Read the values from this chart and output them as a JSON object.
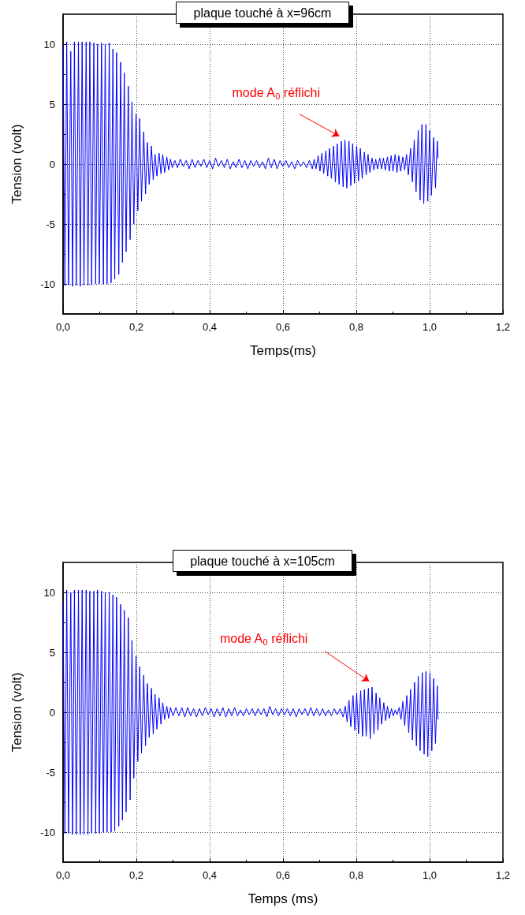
{
  "chart_data": [
    {
      "type": "line",
      "title": "plaque touché à x=96cm",
      "xlabel": "Temps(ms)",
      "ylabel": "Tension (volt)",
      "color": "#0000ff",
      "grid": true,
      "xlim": [
        0,
        1.2
      ],
      "xticks": [
        {
          "value": 0,
          "label": "0,0"
        },
        {
          "value": 0.2,
          "label": "0,2"
        },
        {
          "value": 0.4,
          "label": "0,4"
        },
        {
          "value": 0.6,
          "label": "0,6"
        },
        {
          "value": 0.8,
          "label": "0,8"
        },
        {
          "value": 1.0,
          "label": "1,0"
        },
        {
          "value": 1.2,
          "label": "1,2"
        }
      ],
      "ylim": [
        -12.5,
        12.5
      ],
      "yticks": [
        -10,
        -5,
        0,
        5,
        10
      ],
      "annotations": [
        "mode A$_{0}$ réflichi"
      ],
      "x": [
        0,
        0.005,
        0.01,
        0.015,
        0.021,
        0.026,
        0.031,
        0.036,
        0.042,
        0.047,
        0.052,
        0.057,
        0.063,
        0.068,
        0.073,
        0.078,
        0.084,
        0.089,
        0.094,
        0.099,
        0.105,
        0.11,
        0.115,
        0.12,
        0.126,
        0.131,
        0.136,
        0.141,
        0.146,
        0.152,
        0.157,
        0.162,
        0.167,
        0.172,
        0.178,
        0.183,
        0.188,
        0.193,
        0.199,
        0.204,
        0.209,
        0.214,
        0.22,
        0.225,
        0.23,
        0.235,
        0.241,
        0.246,
        0.251,
        0.256,
        0.262,
        0.267,
        0.272,
        0.277,
        0.283,
        0.288,
        0.293,
        0.298,
        0.305,
        0.312,
        0.32,
        0.328,
        0.336,
        0.344,
        0.352,
        0.36,
        0.368,
        0.376,
        0.384,
        0.392,
        0.4,
        0.408,
        0.416,
        0.424,
        0.432,
        0.44,
        0.448,
        0.456,
        0.464,
        0.472,
        0.48,
        0.488,
        0.496,
        0.504,
        0.512,
        0.52,
        0.528,
        0.536,
        0.544,
        0.552,
        0.56,
        0.568,
        0.576,
        0.584,
        0.592,
        0.6,
        0.608,
        0.616,
        0.624,
        0.632,
        0.64,
        0.648,
        0.656,
        0.664,
        0.672,
        0.68,
        0.685,
        0.69,
        0.696,
        0.701,
        0.706,
        0.711,
        0.717,
        0.722,
        0.727,
        0.732,
        0.738,
        0.743,
        0.748,
        0.753,
        0.759,
        0.764,
        0.769,
        0.774,
        0.78,
        0.785,
        0.79,
        0.795,
        0.801,
        0.806,
        0.811,
        0.816,
        0.822,
        0.827,
        0.832,
        0.837,
        0.843,
        0.848,
        0.853,
        0.858,
        0.864,
        0.869,
        0.874,
        0.879,
        0.885,
        0.89,
        0.895,
        0.9,
        0.906,
        0.911,
        0.916,
        0.921,
        0.927,
        0.932,
        0.937,
        0.942,
        0.948,
        0.953,
        0.958,
        0.963,
        0.969,
        0.974,
        0.979,
        0.984,
        0.99,
        0.995,
        1.0,
        1.005,
        1.011,
        1.016,
        1.021,
        1.023
      ],
      "values": [
        9.8,
        -10.1,
        10.2,
        -10.1,
        9.4,
        -10.2,
        10.2,
        -10.1,
        10.2,
        -10.2,
        10.2,
        -10.1,
        10.2,
        -10.1,
        10.2,
        -10.1,
        10.1,
        -10.0,
        10.0,
        -10.0,
        10.1,
        -10.0,
        10.0,
        -10.0,
        10.1,
        -9.9,
        9.6,
        -9.6,
        9.3,
        -9.2,
        8.5,
        -8.2,
        7.6,
        -7.3,
        6.5,
        -6.3,
        5.2,
        -5.0,
        4.2,
        -3.9,
        3.8,
        -3.1,
        2.7,
        -2.5,
        1.8,
        -1.7,
        1.5,
        -1.3,
        0.8,
        -1.0,
        0.9,
        -0.8,
        0.8,
        -0.7,
        0.6,
        -0.5,
        0.4,
        -0.3,
        0.3,
        -0.3,
        0.4,
        -0.2,
        0.3,
        -0.4,
        0.4,
        -0.3,
        0.3,
        -0.2,
        0.4,
        -0.3,
        0.3,
        -0.4,
        0.5,
        -0.2,
        0.3,
        -0.3,
        0.4,
        -0.4,
        0.2,
        -0.3,
        0.4,
        -0.3,
        0.3,
        -0.4,
        0.3,
        -0.2,
        0.3,
        -0.3,
        0.2,
        -0.4,
        0.5,
        -0.3,
        0.4,
        -0.4,
        0.3,
        -0.2,
        0.3,
        -0.3,
        0.2,
        -0.4,
        0.3,
        -0.2,
        0.2,
        -0.3,
        0.3,
        -0.4,
        0.4,
        -0.4,
        0.7,
        -0.6,
        0.9,
        -0.8,
        1.1,
        -1.0,
        1.3,
        -1.2,
        1.5,
        -1.5,
        1.7,
        -1.7,
        1.9,
        -1.9,
        2.0,
        -2.0,
        1.9,
        -1.8,
        1.7,
        -1.6,
        1.5,
        -1.4,
        1.3,
        -1.2,
        1.0,
        -0.9,
        0.8,
        -0.7,
        0.5,
        -0.5,
        0.4,
        -0.4,
        0.5,
        -0.4,
        0.5,
        -0.5,
        0.6,
        -0.6,
        0.7,
        -0.6,
        0.8,
        -0.7,
        0.7,
        -0.6,
        0.6,
        -0.5,
        0.8,
        -0.9,
        1.3,
        -1.5,
        2.0,
        -2.3,
        2.8,
        -3.0,
        3.3,
        -3.3,
        3.3,
        -3.1,
        2.8,
        -2.6,
        2.2,
        -2.0,
        1.9,
        0.5
      ]
    },
    {
      "type": "line",
      "title": "plaque touché à x=105cm",
      "xlabel": "Temps (ms)",
      "ylabel": "Tension (volt)",
      "color": "#0000ff",
      "grid": true,
      "xlim": [
        0,
        1.2
      ],
      "xticks": [
        {
          "value": 0,
          "label": "0,0"
        },
        {
          "value": 0.2,
          "label": "0,2"
        },
        {
          "value": 0.4,
          "label": "0,4"
        },
        {
          "value": 0.6,
          "label": "0,6"
        },
        {
          "value": 0.8,
          "label": "0,8"
        },
        {
          "value": 1.0,
          "label": "1,0"
        },
        {
          "value": 1.2,
          "label": "1,2"
        }
      ],
      "ylim": [
        -12.5,
        12.5
      ],
      "yticks": [
        -10,
        -5,
        0,
        5,
        10
      ],
      "annotations": [
        "mode A$_{0}$ réflichi"
      ],
      "x": [
        0,
        0.005,
        0.01,
        0.015,
        0.021,
        0.026,
        0.031,
        0.036,
        0.042,
        0.047,
        0.052,
        0.057,
        0.063,
        0.068,
        0.073,
        0.078,
        0.084,
        0.089,
        0.094,
        0.099,
        0.105,
        0.11,
        0.115,
        0.12,
        0.126,
        0.131,
        0.136,
        0.141,
        0.146,
        0.152,
        0.157,
        0.162,
        0.167,
        0.172,
        0.178,
        0.183,
        0.188,
        0.193,
        0.199,
        0.204,
        0.209,
        0.214,
        0.22,
        0.225,
        0.23,
        0.235,
        0.241,
        0.246,
        0.251,
        0.256,
        0.262,
        0.267,
        0.272,
        0.277,
        0.283,
        0.288,
        0.293,
        0.3,
        0.308,
        0.316,
        0.324,
        0.332,
        0.34,
        0.348,
        0.356,
        0.364,
        0.372,
        0.38,
        0.388,
        0.396,
        0.404,
        0.412,
        0.42,
        0.428,
        0.436,
        0.444,
        0.452,
        0.46,
        0.468,
        0.476,
        0.484,
        0.492,
        0.5,
        0.508,
        0.516,
        0.524,
        0.532,
        0.54,
        0.548,
        0.556,
        0.564,
        0.572,
        0.58,
        0.588,
        0.596,
        0.604,
        0.612,
        0.62,
        0.628,
        0.636,
        0.644,
        0.652,
        0.66,
        0.668,
        0.676,
        0.684,
        0.692,
        0.7,
        0.708,
        0.716,
        0.724,
        0.732,
        0.74,
        0.748,
        0.756,
        0.764,
        0.77,
        0.775,
        0.78,
        0.785,
        0.791,
        0.796,
        0.801,
        0.806,
        0.812,
        0.817,
        0.822,
        0.827,
        0.833,
        0.838,
        0.843,
        0.848,
        0.854,
        0.859,
        0.864,
        0.869,
        0.875,
        0.88,
        0.885,
        0.89,
        0.896,
        0.901,
        0.906,
        0.911,
        0.917,
        0.922,
        0.927,
        0.932,
        0.938,
        0.943,
        0.948,
        0.953,
        0.959,
        0.964,
        0.969,
        0.974,
        0.98,
        0.985,
        0.99,
        0.995,
        1.001,
        1.006,
        1.011,
        1.016,
        1.021,
        1.023
      ],
      "values": [
        9.2,
        -10.1,
        10.2,
        -10.1,
        10.0,
        -10.2,
        10.2,
        -10.2,
        10.2,
        -10.2,
        10.2,
        -10.2,
        10.2,
        -10.2,
        10.1,
        -10.1,
        10.1,
        -10.1,
        10.2,
        -10.1,
        10.1,
        -10.0,
        10.0,
        -10.0,
        10.0,
        -10.0,
        9.8,
        -9.9,
        9.6,
        -9.5,
        9.0,
        -9.0,
        8.5,
        -8.3,
        7.9,
        -7.3,
        6.0,
        -5.5,
        4.7,
        -4.1,
        3.8,
        -3.4,
        3.1,
        -2.8,
        2.4,
        -2.1,
        2.0,
        -1.8,
        1.5,
        -1.4,
        1.2,
        -1.0,
        0.8,
        -0.6,
        0.5,
        -0.5,
        0.4,
        -0.3,
        0.4,
        -0.3,
        0.4,
        -0.4,
        0.4,
        -0.3,
        0.3,
        -0.4,
        0.3,
        -0.3,
        0.4,
        -0.2,
        0.3,
        -0.4,
        0.3,
        -0.3,
        0.4,
        -0.4,
        0.3,
        -0.3,
        0.4,
        -0.3,
        0.2,
        -0.3,
        0.3,
        -0.2,
        0.3,
        -0.3,
        0.3,
        -0.2,
        0.3,
        -0.4,
        0.5,
        -0.2,
        0.3,
        -0.3,
        0.3,
        -0.2,
        0.3,
        -0.3,
        0.3,
        -0.4,
        0.3,
        -0.2,
        0.3,
        -0.3,
        0.4,
        -0.3,
        0.3,
        -0.3,
        0.3,
        -0.3,
        0.2,
        -0.3,
        0.3,
        -0.2,
        0.3,
        -0.4,
        0.5,
        -0.8,
        1.0,
        -1.2,
        1.4,
        -1.5,
        1.6,
        -1.8,
        1.8,
        -2.0,
        1.9,
        -2.0,
        2.0,
        -2.2,
        2.1,
        -1.8,
        1.6,
        -1.5,
        1.2,
        -1.0,
        0.8,
        -0.7,
        0.5,
        -0.5,
        0.3,
        -0.3,
        0.2,
        -0.2,
        0.4,
        -0.6,
        0.9,
        -1.1,
        1.4,
        -1.7,
        1.9,
        -2.3,
        2.5,
        -2.8,
        3.0,
        -3.2,
        3.3,
        -3.5,
        3.4,
        -3.7,
        3.3,
        -3.2,
        2.8,
        -2.6,
        2.2,
        -0.6
      ]
    }
  ]
}
